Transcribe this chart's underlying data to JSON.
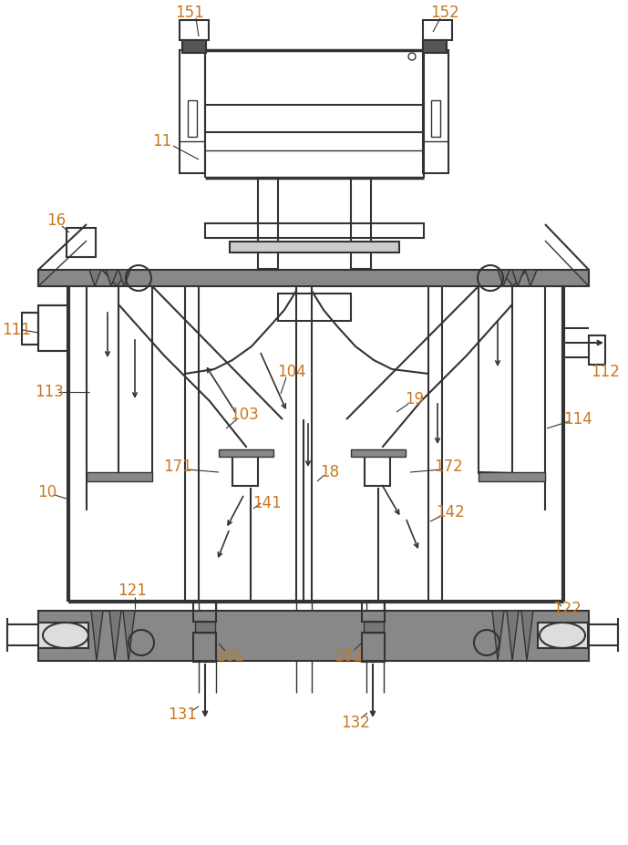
{
  "bg_color": "#ffffff",
  "line_color": "#333333",
  "label_color": "#c87820",
  "fig_width": 6.89,
  "fig_height": 9.27,
  "dpi": 100
}
